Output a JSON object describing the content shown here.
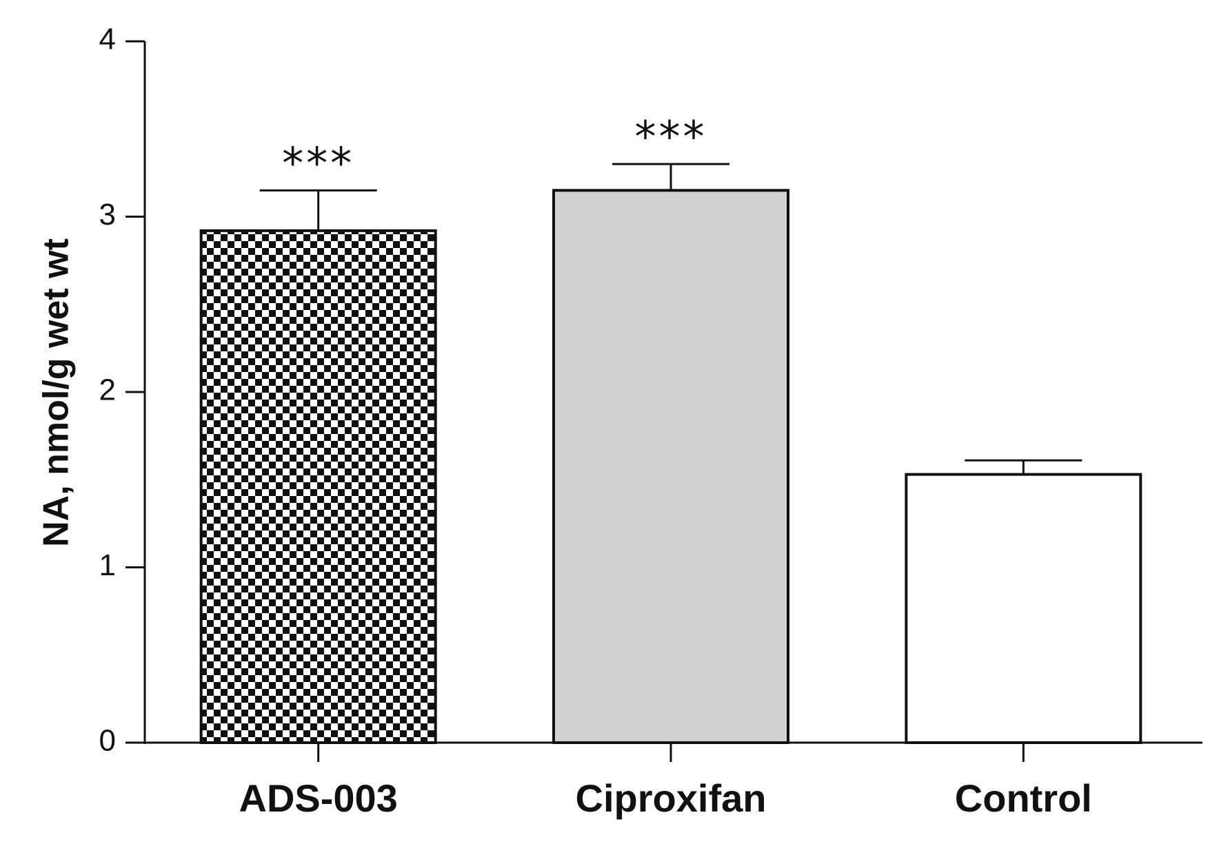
{
  "chart_data": {
    "type": "bar",
    "categories": [
      "ADS-003",
      "Ciproxifan",
      "Control"
    ],
    "values": [
      2.92,
      3.15,
      1.53
    ],
    "errors": [
      0.23,
      0.15,
      0.08
    ],
    "significance": [
      "***",
      "***",
      ""
    ],
    "fills": [
      "checkerboard",
      "#d3d3d3",
      "#ffffff"
    ],
    "xlabel": "",
    "ylabel": "NA, nmol/g wet wt",
    "ylim": [
      0,
      4
    ],
    "yticks": [
      "0",
      "1",
      "2",
      "3",
      "4"
    ],
    "grid": false,
    "legend": "none"
  }
}
